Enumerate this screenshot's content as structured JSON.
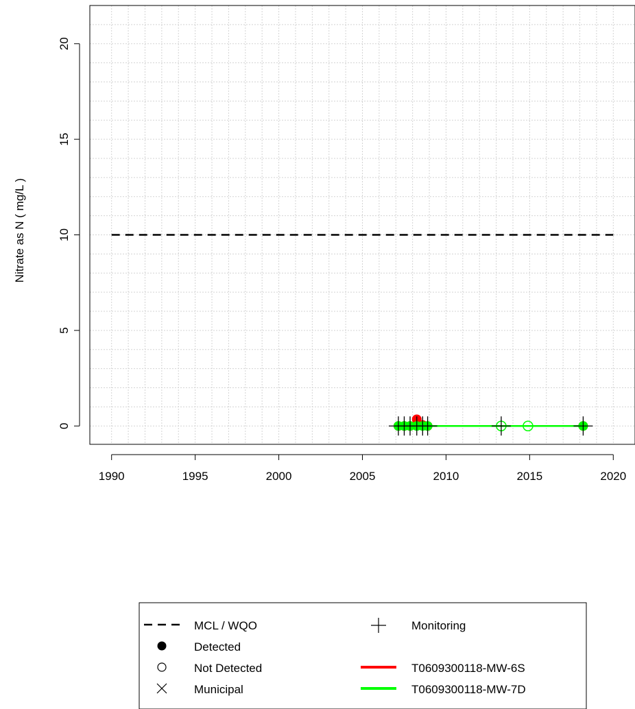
{
  "chart_data": {
    "type": "line",
    "title": "",
    "xlabel": "",
    "ylabel": "Nitrate as N ( mg/L )",
    "xlim": [
      1988.7,
      2021.3
    ],
    "ylim": [
      -0.96,
      22.0
    ],
    "x_ticks": [
      "1990",
      "1995",
      "2000",
      "2005",
      "2010",
      "2015",
      "2020"
    ],
    "y_ticks": [
      "0",
      "5",
      "10",
      "15",
      "20"
    ],
    "grid": true,
    "reference_line": {
      "label": "MCL / WQO",
      "y": 10,
      "x": [
        1990,
        2020
      ],
      "style": "dashed",
      "color": "#000000"
    },
    "series": [
      {
        "name": "T0609300118-MW-6S",
        "color": "#ff0000",
        "points": [
          {
            "x": 2007.15,
            "y": 0.0,
            "detected": true
          },
          {
            "x": 2007.5,
            "y": 0.0,
            "detected": true
          },
          {
            "x": 2007.85,
            "y": 0.0,
            "detected": true
          },
          {
            "x": 2008.25,
            "y": 0.35,
            "detected": true
          },
          {
            "x": 2008.6,
            "y": 0.05,
            "detected": true
          },
          {
            "x": 2008.9,
            "y": 0.0,
            "detected": true
          },
          {
            "x": 2018.2,
            "y": 0.0,
            "detected": true
          }
        ]
      },
      {
        "name": "T0609300118-MW-7D",
        "color": "#00ff00",
        "points": [
          {
            "x": 2007.15,
            "y": 0.0,
            "detected": true
          },
          {
            "x": 2007.5,
            "y": 0.0,
            "detected": true
          },
          {
            "x": 2007.85,
            "y": 0.0,
            "detected": true
          },
          {
            "x": 2008.25,
            "y": 0.0,
            "detected": true
          },
          {
            "x": 2008.6,
            "y": 0.0,
            "detected": true
          },
          {
            "x": 2008.9,
            "y": 0.0,
            "detected": true
          },
          {
            "x": 2013.3,
            "y": 0.0,
            "detected": false
          },
          {
            "x": 2014.9,
            "y": 0.0,
            "detected": false
          },
          {
            "x": 2018.2,
            "y": 0.0,
            "detected": true
          }
        ]
      }
    ],
    "monitoring_marks": [
      2007.15,
      2007.5,
      2007.85,
      2008.25,
      2008.6,
      2008.9,
      2013.3,
      2018.2
    ]
  },
  "legend": {
    "items": {
      "mcl": "MCL / WQO",
      "detected": "Detected",
      "not_detected": "Not Detected",
      "municipal": "Municipal",
      "monitoring": "Monitoring",
      "series1": "T0609300118-MW-6S",
      "series2": "T0609300118-MW-7D"
    },
    "colors": {
      "series1": "#ff0000",
      "series2": "#00ff00"
    }
  }
}
